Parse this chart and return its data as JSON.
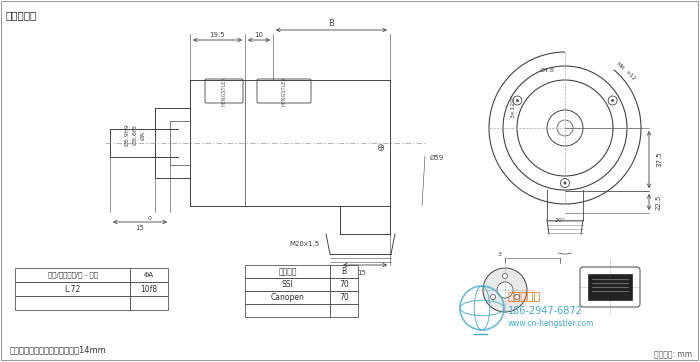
{
  "title": "连接：径向",
  "bg_color": "#ffffff",
  "line_color": "#444444",
  "dim_color": "#444444",
  "table1_headers": [
    "安装/防护等级/轴 - 代码",
    "ΦA"
  ],
  "table1_row": [
    "L.72",
    "10f8"
  ],
  "table2_headers": [
    "电气接口",
    "B"
  ],
  "table2_rows": [
    [
      "SSI",
      "70"
    ],
    [
      "Canopen",
      "70"
    ]
  ],
  "note": "推荐的电缆密封管的螺纹长度：14mm",
  "unit": "单位尺寸: mm",
  "wm_text": "西安德伍拓",
  "wm_phone": "186-2947-6872",
  "wm_web": "www.cn-hengstler.com",
  "wm_color": "#44aacc",
  "wm_orange": "#ee6600"
}
